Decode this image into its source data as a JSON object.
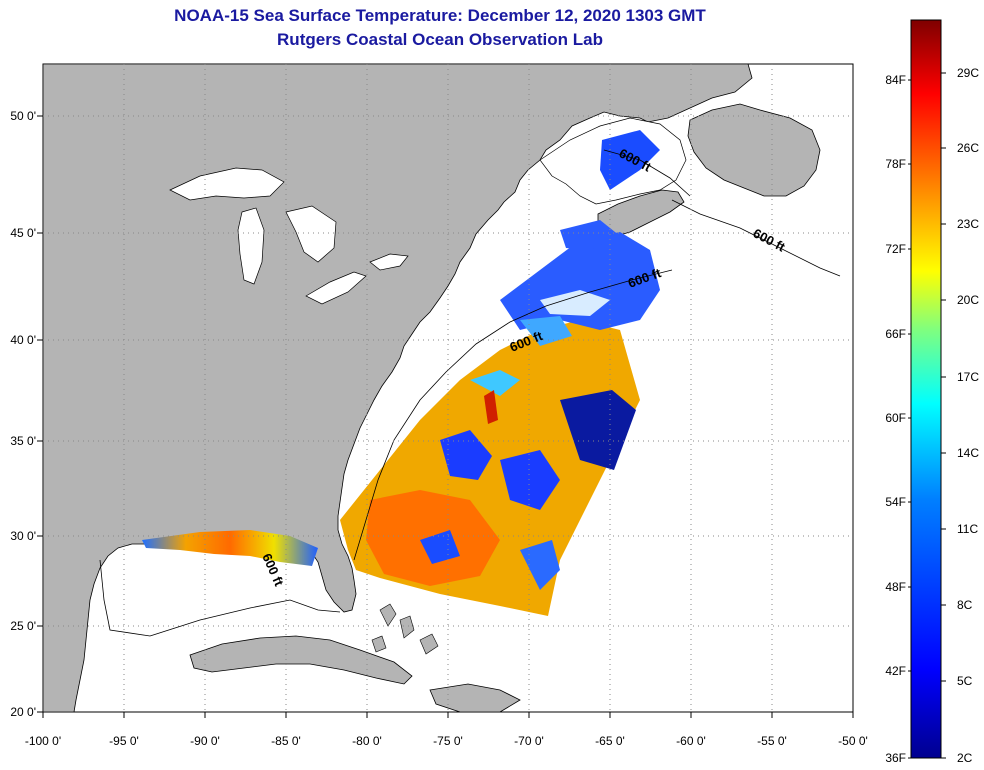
{
  "title": {
    "line1": "NOAA-15 Sea Surface Temperature:  December 12, 2020 1303 GMT",
    "line2": "Rutgers Coastal Ocean Observation Lab"
  },
  "map": {
    "lon_ticks": [
      "-100 0'",
      "-95 0'",
      "-90 0'",
      "-85 0'",
      "-80 0'",
      "-75 0'",
      "-70 0'",
      "-65 0'",
      "-60 0'",
      "-55 0'",
      "-50 0'"
    ],
    "lat_ticks": [
      "50 0'",
      "45 0'",
      "40 0'",
      "35 0'",
      "30 0'",
      "25 0'",
      "20 0'"
    ],
    "contour_labels": [
      "600 ft",
      "600 ft",
      "600 ft",
      "600 ft",
      "600 ft"
    ],
    "colors": {
      "land": "#b4b4b4",
      "water": "#ffffff",
      "coastline": "#000000",
      "grid": "#888888"
    }
  },
  "colorbar": {
    "fahrenheit_labels": [
      "84F",
      "78F",
      "72F",
      "66F",
      "60F",
      "54F",
      "48F",
      "42F",
      "36F"
    ],
    "celsius_labels": [
      "29C",
      "26C",
      "23C",
      "20C",
      "17C",
      "14C",
      "11C",
      "8C",
      "5C",
      "2C"
    ],
    "gradient_stops": [
      "#00008f",
      "#0000ff",
      "#007fff",
      "#00ffff",
      "#7fff7f",
      "#ffff00",
      "#ff7f00",
      "#ff0000",
      "#7f0000"
    ]
  }
}
